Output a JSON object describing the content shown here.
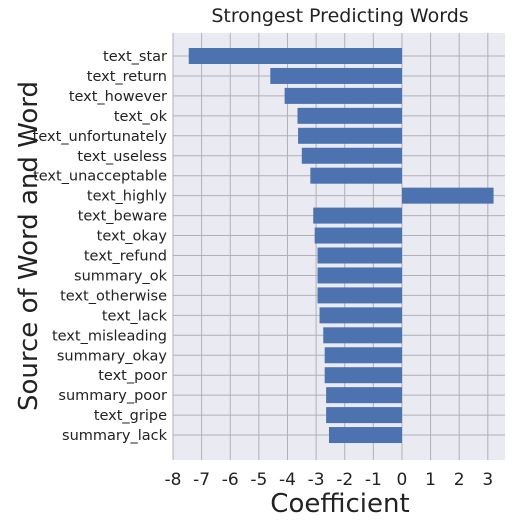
{
  "chart_data": {
    "type": "bar",
    "orientation": "horizontal",
    "title": "Strongest Predicting Words",
    "xlabel": "Coefficient",
    "ylabel": "Source of Word and Word",
    "xlim": [
      -8,
      3.6
    ],
    "xticks": [
      "-8",
      "-7",
      "-6",
      "-5",
      "-4",
      "-3",
      "-2",
      "-1",
      "0",
      "1",
      "2",
      "3"
    ],
    "grid": true,
    "bar_color": "#4c72b0",
    "background_color": "#eaeaf2",
    "grid_color": "#b0b0b8",
    "categories": [
      "text_star",
      "text_return",
      "text_however",
      "text_ok",
      "text_unfortunately",
      "text_useless",
      "text_unacceptable",
      "text_highly",
      "text_beware",
      "text_okay",
      "text_refund",
      "summary_ok",
      "text_otherwise",
      "text_lack",
      "text_misleading",
      "summary_okay",
      "text_poor",
      "summary_poor",
      "text_gripe",
      "summary_lack"
    ],
    "values": [
      -7.45,
      -4.6,
      -4.1,
      -3.65,
      -3.63,
      -3.5,
      -3.2,
      3.2,
      -3.1,
      -3.05,
      -2.95,
      -2.95,
      -2.95,
      -2.88,
      -2.75,
      -2.7,
      -2.7,
      -2.65,
      -2.65,
      -2.55
    ]
  }
}
